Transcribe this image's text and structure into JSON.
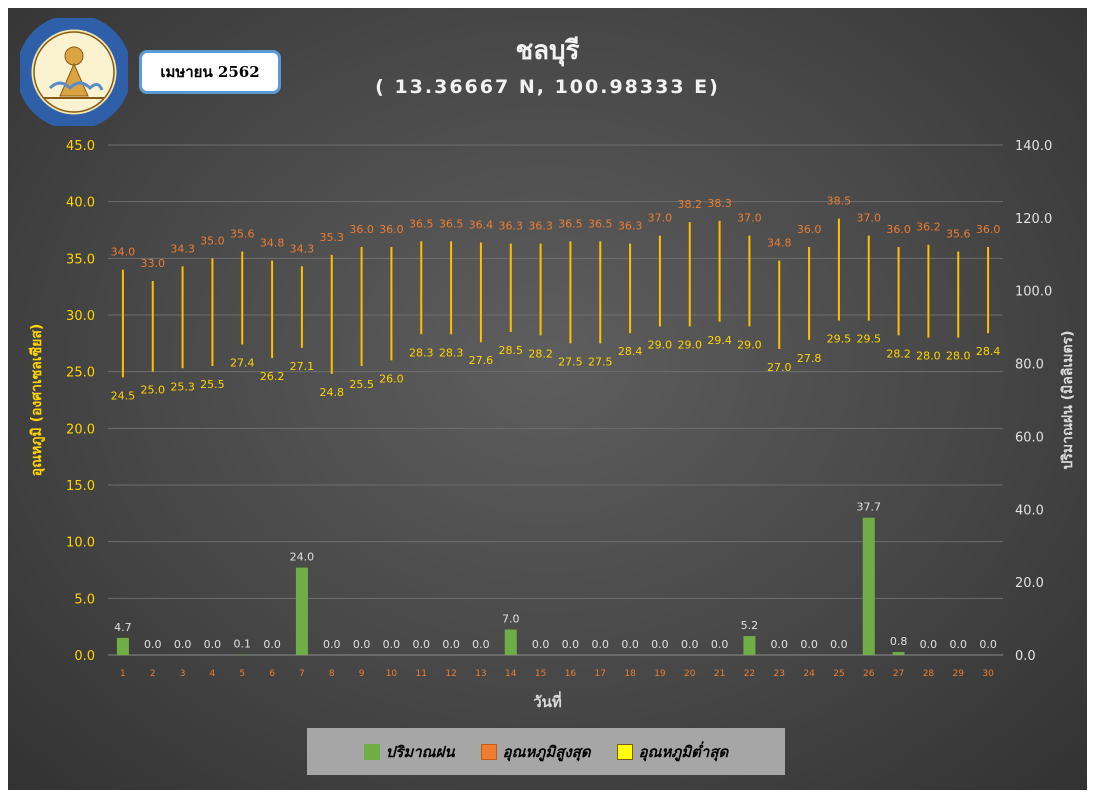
{
  "header": {
    "title": "ชลบุรี",
    "subtitle": "( 13.36667 N, 100.98333 E)",
    "month": "เมษายน 2562"
  },
  "colors": {
    "rain": "#70ad47",
    "tmax": "#ed7d31",
    "tmin": "#ffd400",
    "bar": "#ffc000"
  },
  "chart_data": {
    "type": "bar",
    "x": [
      "1",
      "2",
      "3",
      "4",
      "5",
      "6",
      "7",
      "8",
      "9",
      "10",
      "11",
      "12",
      "13",
      "14",
      "15",
      "16",
      "17",
      "18",
      "19",
      "20",
      "21",
      "22",
      "23",
      "24",
      "25",
      "26",
      "27",
      "28",
      "29",
      "30"
    ],
    "xlabel": "วันที่",
    "ylabel_left": "อุณหภูมิ (องศาเซลเซียส)",
    "ylabel_right": "ปริมาณฝน (มิลลิเมตร)",
    "ylim_left": [
      0,
      45
    ],
    "ylim_right": [
      0,
      140
    ],
    "yticks_left": [
      "0.0",
      "5.0",
      "10.0",
      "15.0",
      "20.0",
      "25.0",
      "30.0",
      "35.0",
      "40.0",
      "45.0"
    ],
    "yticks_right": [
      "0.0",
      "20.0",
      "40.0",
      "60.0",
      "80.0",
      "100.0",
      "120.0",
      "140.0"
    ],
    "grid": true,
    "legend_position": "bottom",
    "series": [
      {
        "name": "ปริมาณฝน",
        "axis": "right",
        "values": [
          4.7,
          0.0,
          0.0,
          0.0,
          0.1,
          0.0,
          24.0,
          0.0,
          0.0,
          0.0,
          0.0,
          0.0,
          0.0,
          7.0,
          0.0,
          0.0,
          0.0,
          0.0,
          0.0,
          0.0,
          0.0,
          5.2,
          0.0,
          0.0,
          0.0,
          37.7,
          0.8,
          0.0,
          0.0,
          0.0
        ]
      },
      {
        "name": "อุณหภูมิสูงสุด",
        "axis": "left",
        "values": [
          34.0,
          33.0,
          34.3,
          35.0,
          35.6,
          34.8,
          34.3,
          35.3,
          36.0,
          36.0,
          36.5,
          36.5,
          36.4,
          36.3,
          36.3,
          36.5,
          36.5,
          36.3,
          37.0,
          38.2,
          38.3,
          37.0,
          34.8,
          36.0,
          38.5,
          37.0,
          36.0,
          36.2,
          35.6,
          36.0
        ]
      },
      {
        "name": "อุณหภูมิต่ำสุด",
        "axis": "left",
        "values": [
          24.5,
          25.0,
          25.3,
          25.5,
          27.4,
          26.2,
          27.1,
          24.8,
          25.5,
          26.0,
          28.3,
          28.3,
          27.6,
          28.5,
          28.2,
          27.5,
          27.5,
          28.4,
          29.0,
          29.0,
          29.4,
          29.0,
          27.0,
          27.8,
          29.5,
          29.5,
          28.2,
          28.0,
          28.0,
          28.4
        ]
      }
    ]
  }
}
